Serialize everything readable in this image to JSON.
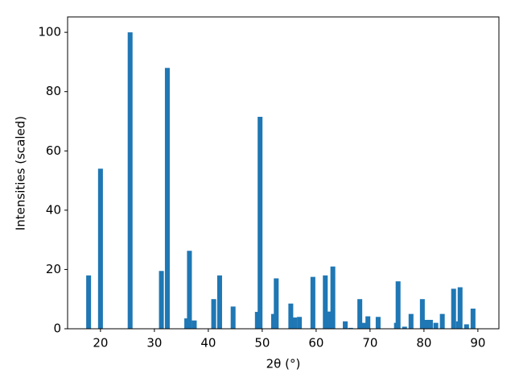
{
  "chart_data": {
    "type": "bar",
    "xlabel": "2θ (°)",
    "ylabel": "Intensities (scaled)",
    "color": "#1f77b4",
    "x": [
      17.8,
      20.0,
      25.5,
      31.3,
      32.4,
      36.0,
      36.5,
      37.4,
      41.0,
      42.1,
      44.6,
      49.1,
      49.6,
      52.1,
      52.6,
      55.3,
      56.0,
      56.9,
      59.4,
      61.7,
      62.4,
      63.1,
      65.4,
      66.4,
      68.1,
      68.8,
      69.6,
      71.5,
      74.9,
      75.2,
      76.4,
      77.6,
      79.7,
      80.4,
      81.2,
      82.2,
      83.4,
      85.5,
      86.4,
      86.7,
      87.9,
      89.1
    ],
    "values": [
      18,
      54,
      100,
      19.5,
      88,
      3.5,
      26.3,
      2.8,
      10,
      18,
      7.5,
      5.7,
      71.5,
      5,
      17,
      8.5,
      3.8,
      4,
      17.5,
      18,
      5.8,
      21,
      2.5,
      0.3,
      10,
      2,
      4.2,
      4,
      2,
      16,
      0.7,
      5,
      10,
      3,
      3,
      2,
      5,
      13.5,
      2.5,
      14,
      1.5,
      6.8
    ],
    "xlim": [
      13.9,
      93.9
    ],
    "xticks": [
      20,
      30,
      40,
      50,
      60,
      70,
      80,
      90
    ],
    "ylim": [
      0,
      105.2
    ],
    "yticks": [
      0,
      20,
      40,
      60,
      80,
      100
    ]
  }
}
